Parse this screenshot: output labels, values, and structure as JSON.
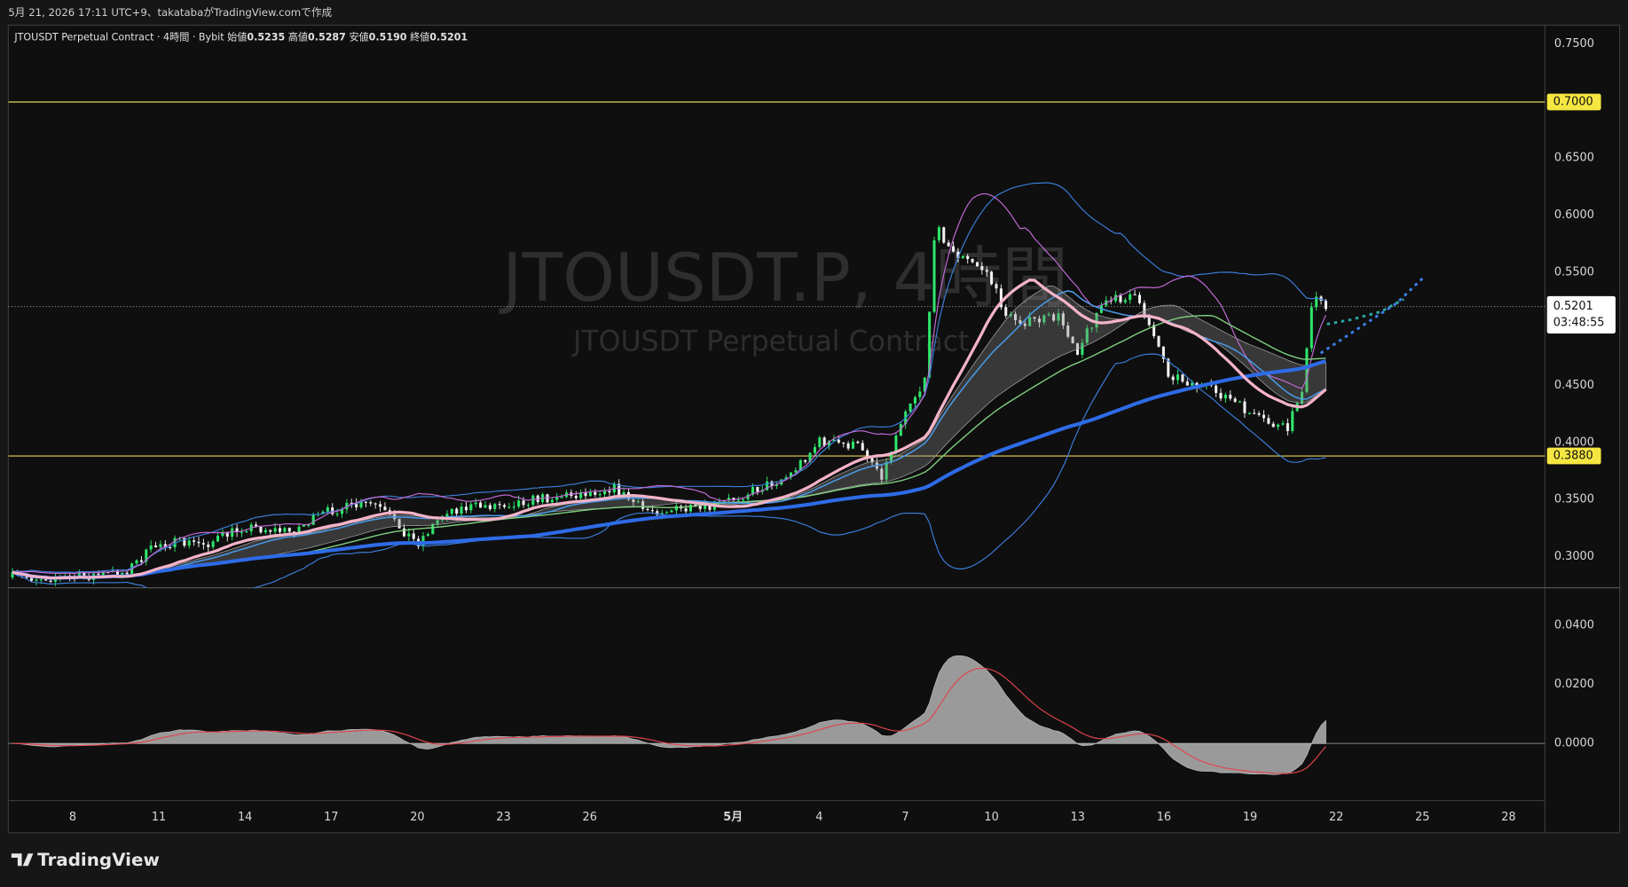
{
  "header": {
    "text": "5月 21, 2026 17:11 UTC+9、takatabaがTradingView.comで作成"
  },
  "legend": {
    "symbol": "JTOUSDT Perpetual Contract · 4時間 · Bybit",
    "open_label": "始値",
    "open": "0.5235",
    "high_label": "高値",
    "high": "0.5287",
    "low_label": "安値",
    "low": "0.5190",
    "close_label": "終値",
    "close": "0.5201"
  },
  "watermark": {
    "title": "JTOUSDT.P, 4時間",
    "subtitle": "JTOUSDT Perpetual Contract"
  },
  "price_axis": {
    "labels": [
      "0.7500",
      "0.6500",
      "0.6000",
      "0.5500",
      "0.4500",
      "0.4000",
      "0.3500",
      "0.3000"
    ],
    "horizontal_lines": [
      "0.7000",
      "0.3880"
    ],
    "last_price": "0.5201",
    "countdown": "03:48:55"
  },
  "oscillator_axis": {
    "labels": [
      "0.0400",
      "0.0200",
      "0.0000"
    ]
  },
  "time_axis": {
    "labels": [
      "8",
      "11",
      "14",
      "17",
      "20",
      "23",
      "26",
      "5月",
      "4",
      "7",
      "10",
      "13",
      "16",
      "19",
      "22",
      "25",
      "28"
    ]
  },
  "footer": {
    "logo": "TradingView"
  }
}
